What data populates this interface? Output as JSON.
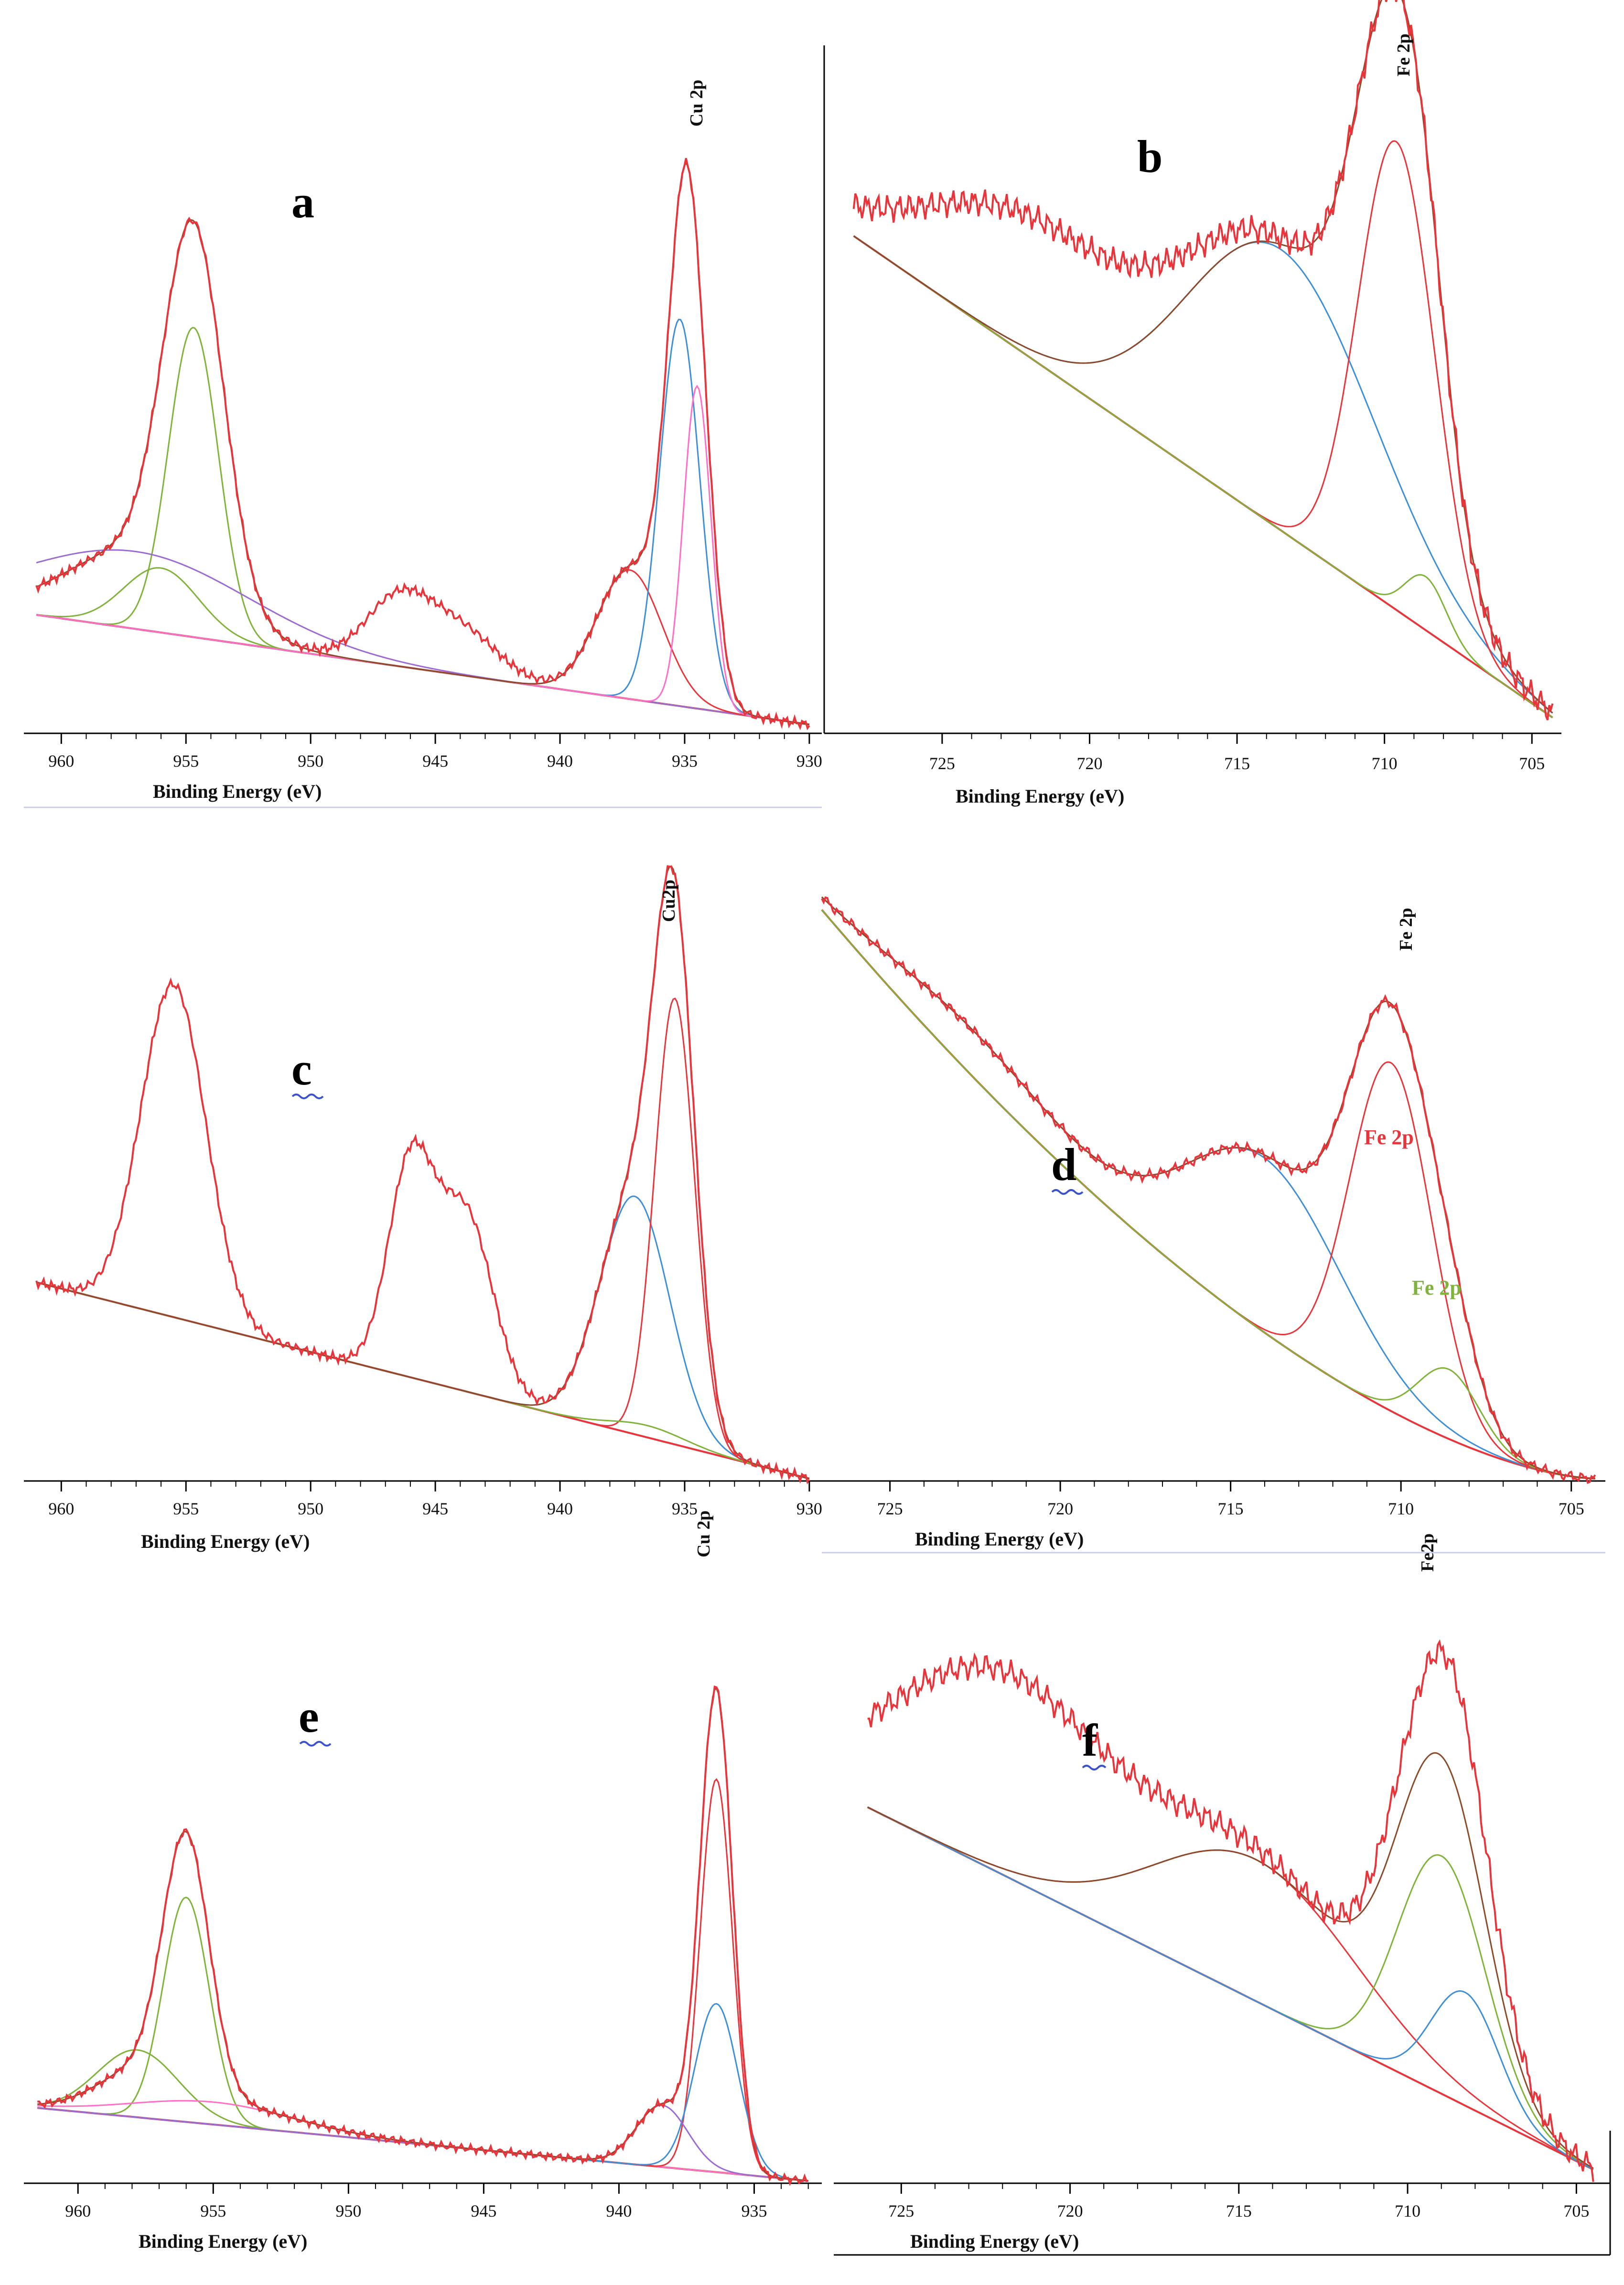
{
  "figure": {
    "panels": [
      {
        "id": "a",
        "letter": "a",
        "peak_label": "Cu 2p",
        "xlabel": "Binding Energy (eV)",
        "ticks": [
          "960",
          "955",
          "950",
          "945",
          "940",
          "935",
          "930"
        ]
      },
      {
        "id": "b",
        "letter": "b",
        "peak_label": "Fe 2p",
        "xlabel": "Binding Energy (eV)",
        "ticks": [
          "725",
          "720",
          "715",
          "710",
          "705"
        ]
      },
      {
        "id": "c",
        "letter": "c",
        "peak_label": "Cu2p",
        "xlabel": "Binding Energy (eV)",
        "ticks": [
          "960",
          "955",
          "950",
          "945",
          "940",
          "935",
          "930"
        ]
      },
      {
        "id": "d",
        "letter": "d",
        "peak_label": "Fe 2p",
        "xlabel": "Binding Energy (eV)",
        "ticks": [
          "725",
          "720",
          "715",
          "710",
          "705"
        ],
        "component_labels": [
          "Fe 2p",
          "Fe 2p"
        ]
      },
      {
        "id": "e",
        "letter": "e",
        "peak_label": "Cu 2p",
        "xlabel": "Binding Energy (eV)",
        "ticks": [
          "960",
          "955",
          "950",
          "945",
          "940",
          "935"
        ]
      },
      {
        "id": "f",
        "letter": "f",
        "peak_label": "Fe2p",
        "xlabel": "Binding Energy (eV)",
        "ticks": [
          "725",
          "720",
          "715",
          "710",
          "705"
        ]
      }
    ]
  },
  "colors": {
    "envelope": "#e8343a",
    "fit": "#8b4a2a",
    "comp_blue": "#3f8fd6",
    "comp_green": "#7fb33a",
    "comp_red": "#e8343a",
    "comp_pink": "#ff6ec7",
    "comp_purple": "#9b6bd3"
  },
  "chart_data": [
    {
      "panel": "a",
      "type": "line",
      "title": "",
      "xlabel": "Binding Energy (eV)",
      "ylabel": "",
      "xlim": [
        961.5,
        929.5
      ],
      "ylim": [
        0,
        1
      ],
      "baseline": {
        "a": 961,
        "b": 930,
        "ya": 0.18,
        "yb": 0.01
      },
      "envelope": {
        "peaks": [
          {
            "e": 954.7,
            "w": 1.2,
            "h": 0.56
          },
          {
            "e": 957.0,
            "w": 2.8,
            "h": 0.12
          },
          {
            "e": 946.5,
            "w": 1.3,
            "h": 0.1
          },
          {
            "e": 944.0,
            "w": 1.5,
            "h": 0.07
          },
          {
            "e": 937.2,
            "w": 1.3,
            "h": 0.2
          },
          {
            "e": 934.9,
            "w": 0.75,
            "h": 0.8
          }
        ],
        "noise": 0.008
      },
      "fit": {
        "peaks": [
          {
            "e": 954.7,
            "w": 1.2,
            "h": 0.56
          },
          {
            "e": 957.0,
            "w": 2.8,
            "h": 0.12
          },
          {
            "e": 937.2,
            "w": 1.3,
            "h": 0.2
          },
          {
            "e": 934.9,
            "w": 0.75,
            "h": 0.8
          }
        ],
        "noise": 0
      },
      "components": [
        {
          "color": "#7fb33a",
          "peaks": [
            {
              "e": 954.7,
              "w": 1.0,
              "h": 0.48
            }
          ]
        },
        {
          "color": "#7fb33a",
          "peaks": [
            {
              "e": 956.0,
              "w": 1.5,
              "h": 0.1
            }
          ]
        },
        {
          "color": "#9b6bd3",
          "peaks": [
            {
              "e": 957.0,
              "w": 4.5,
              "h": 0.12
            }
          ]
        },
        {
          "color": "#e8343a",
          "peaks": [
            {
              "e": 937.2,
              "w": 1.3,
              "h": 0.2
            }
          ]
        },
        {
          "color": "#3f8fd6",
          "peaks": [
            {
              "e": 935.2,
              "w": 0.8,
              "h": 0.6
            }
          ]
        },
        {
          "color": "#ff6ec7",
          "peaks": [
            {
              "e": 934.5,
              "w": 0.55,
              "h": 0.5
            }
          ]
        }
      ]
    },
    {
      "panel": "b",
      "type": "line",
      "title": "",
      "xlabel": "Binding Energy (eV)",
      "ylabel": "",
      "xlim": [
        729,
        704
      ],
      "ylim": [
        0,
        1
      ],
      "baseline": {
        "a": 728,
        "b": 704.3,
        "ya": 0.74,
        "yb": 0.02
      },
      "envelope": {
        "peaks": [
          {
            "e": 722.0,
            "w": 3.5,
            "h": 0.2
          },
          {
            "e": 713.5,
            "w": 3.2,
            "h": 0.42
          },
          {
            "e": 709.6,
            "w": 1.3,
            "h": 0.7
          },
          {
            "e": 708.6,
            "w": 0.7,
            "h": 0.08
          }
        ],
        "noise": 0.022
      },
      "fit": {
        "peaks": [
          {
            "e": 713.5,
            "w": 3.2,
            "h": 0.42
          },
          {
            "e": 709.6,
            "w": 1.3,
            "h": 0.7
          },
          {
            "e": 708.6,
            "w": 0.7,
            "h": 0.08
          }
        ],
        "noise": 0
      },
      "components": [
        {
          "color": "#3f8fd6",
          "peaks": [
            {
              "e": 713.5,
              "w": 3.2,
              "h": 0.42
            }
          ]
        },
        {
          "color": "#e8343a",
          "peaks": [
            {
              "e": 709.6,
              "w": 1.3,
              "h": 0.7
            }
          ]
        },
        {
          "color": "#7fb33a",
          "peaks": [
            {
              "e": 708.6,
              "w": 0.7,
              "h": 0.08
            }
          ]
        }
      ]
    },
    {
      "panel": "c",
      "type": "line",
      "title": "",
      "xlabel": "Binding Energy (eV)",
      "ylabel": "",
      "xlim": [
        961.5,
        929.5
      ],
      "ylim": [
        0,
        1
      ],
      "baseline": {
        "a": 961,
        "b": 930,
        "ya": 0.33,
        "yb": 0.0
      },
      "envelope": {
        "peaks": [
          {
            "e": 955.5,
            "w": 1.3,
            "h": 0.56
          },
          {
            "e": 946.0,
            "w": 0.9,
            "h": 0.35
          },
          {
            "e": 943.8,
            "w": 1.1,
            "h": 0.3
          },
          {
            "e": 937.0,
            "w": 1.4,
            "h": 0.4
          },
          {
            "e": 935.4,
            "w": 0.8,
            "h": 0.75
          }
        ],
        "noise": 0.009
      },
      "fit": {
        "peaks": [
          {
            "e": 937.0,
            "w": 1.4,
            "h": 0.4
          },
          {
            "e": 935.4,
            "w": 0.8,
            "h": 0.75
          }
        ],
        "noise": 0
      },
      "components": [
        {
          "color": "#3f8fd6",
          "peaks": [
            {
              "e": 937.0,
              "w": 1.4,
              "h": 0.4
            }
          ]
        },
        {
          "color": "#e8343a",
          "peaks": [
            {
              "e": 935.4,
              "w": 0.8,
              "h": 0.75
            }
          ]
        },
        {
          "color": "#7fb33a",
          "peaks": [
            {
              "e": 936.5,
              "w": 1.5,
              "h": 0.02
            }
          ]
        }
      ]
    },
    {
      "panel": "d",
      "type": "line",
      "title": "",
      "xlabel": "Binding Energy (eV)",
      "ylabel": "",
      "xlim": [
        727,
        704
      ],
      "ylim": [
        0,
        1
      ],
      "baseline": {
        "a": 727,
        "b": 704.3,
        "ya": 0.98,
        "yb": 0.0
      },
      "shirley": true,
      "envelope": {
        "peaks": [
          {
            "e": 722.5,
            "w": 2.8,
            "h": 0.08
          },
          {
            "e": 714.0,
            "w": 2.3,
            "h": 0.3
          },
          {
            "e": 710.3,
            "w": 1.2,
            "h": 0.6
          },
          {
            "e": 708.6,
            "w": 0.9,
            "h": 0.12
          }
        ],
        "noise": 0.01
      },
      "fit": {
        "peaks": [
          {
            "e": 722.5,
            "w": 2.8,
            "h": 0.08
          },
          {
            "e": 714.0,
            "w": 2.3,
            "h": 0.3
          },
          {
            "e": 710.3,
            "w": 1.2,
            "h": 0.6
          },
          {
            "e": 708.6,
            "w": 0.9,
            "h": 0.12
          }
        ],
        "noise": 0
      },
      "components": [
        {
          "color": "#3f8fd6",
          "peaks": [
            {
              "e": 714.0,
              "w": 2.3,
              "h": 0.3
            },
            {
              "e": 722.5,
              "w": 2.8,
              "h": 0.08
            }
          ]
        },
        {
          "color": "#e8343a",
          "peaks": [
            {
              "e": 710.3,
              "w": 1.2,
              "h": 0.6
            }
          ]
        },
        {
          "color": "#7fb33a",
          "peaks": [
            {
              "e": 708.6,
              "w": 0.9,
              "h": 0.12
            }
          ]
        }
      ]
    },
    {
      "panel": "e",
      "type": "line",
      "title": "",
      "xlabel": "Binding Energy (eV)",
      "ylabel": "",
      "xlim": [
        962,
        932.5
      ],
      "ylim": [
        0,
        1
      ],
      "baseline": {
        "a": 961.5,
        "b": 933,
        "ya": 0.13,
        "yb": 0.0
      },
      "envelope": {
        "peaks": [
          {
            "e": 956.0,
            "w": 0.85,
            "h": 0.45
          },
          {
            "e": 957.8,
            "w": 1.5,
            "h": 0.06
          },
          {
            "e": 955.0,
            "w": 3.0,
            "h": 0.04
          },
          {
            "e": 938.4,
            "w": 0.95,
            "h": 0.11
          },
          {
            "e": 936.4,
            "w": 0.6,
            "h": 0.85
          }
        ],
        "noise": 0.008
      },
      "fit": {
        "peaks": [
          {
            "e": 956.0,
            "w": 0.85,
            "h": 0.45
          },
          {
            "e": 957.8,
            "w": 1.5,
            "h": 0.06
          },
          {
            "e": 955.0,
            "w": 3.0,
            "h": 0.04
          },
          {
            "e": 938.4,
            "w": 0.95,
            "h": 0.11
          },
          {
            "e": 936.4,
            "w": 0.6,
            "h": 0.85
          }
        ],
        "noise": 0
      },
      "components": [
        {
          "color": "#7fb33a",
          "peaks": [
            {
              "e": 956.0,
              "w": 0.85,
              "h": 0.4
            }
          ]
        },
        {
          "color": "#7fb33a",
          "peaks": [
            {
              "e": 957.8,
              "w": 1.5,
              "h": 0.12
            }
          ]
        },
        {
          "color": "#ff6ec7",
          "peaks": [
            {
              "e": 955.0,
              "w": 3.0,
              "h": 0.04
            }
          ]
        },
        {
          "color": "#e8343a",
          "peaks": [
            {
              "e": 936.4,
              "w": 0.6,
              "h": 0.7
            }
          ]
        },
        {
          "color": "#3f8fd6",
          "peaks": [
            {
              "e": 936.4,
              "w": 0.8,
              "h": 0.3
            }
          ]
        },
        {
          "color": "#9b6bd3",
          "peaks": [
            {
              "e": 938.4,
              "w": 0.95,
              "h": 0.11
            }
          ]
        }
      ]
    },
    {
      "panel": "f",
      "type": "line",
      "title": "",
      "xlabel": "Binding Energy (eV)",
      "ylabel": "",
      "xlim": [
        727,
        704
      ],
      "ylim": [
        0,
        1
      ],
      "baseline": {
        "a": 726,
        "b": 704.5,
        "ya": 0.66,
        "yb": 0.02
      },
      "envelope": {
        "peaks": [
          {
            "e": 722.0,
            "w": 3.2,
            "h": 0.35
          },
          {
            "e": 714.5,
            "w": 3.0,
            "h": 0.25
          },
          {
            "e": 709.0,
            "w": 1.3,
            "h": 0.7
          },
          {
            "e": 708.3,
            "w": 0.8,
            "h": 0.05
          }
        ],
        "noise": 0.025
      },
      "fit": {
        "peaks": [
          {
            "e": 714.5,
            "w": 3.0,
            "h": 0.25
          },
          {
            "e": 709.0,
            "w": 1.3,
            "h": 0.55
          }
        ],
        "noise": 0
      },
      "components": [
        {
          "color": "#e8343a",
          "peaks": [
            {
              "e": 714.5,
              "w": 3.0,
              "h": 0.25
            }
          ]
        },
        {
          "color": "#7fb33a",
          "peaks": [
            {
              "e": 709.0,
              "w": 1.3,
              "h": 0.42
            }
          ]
        },
        {
          "color": "#3f8fd6",
          "peaks": [
            {
              "e": 708.3,
              "w": 1.0,
              "h": 0.2
            }
          ]
        }
      ]
    }
  ]
}
